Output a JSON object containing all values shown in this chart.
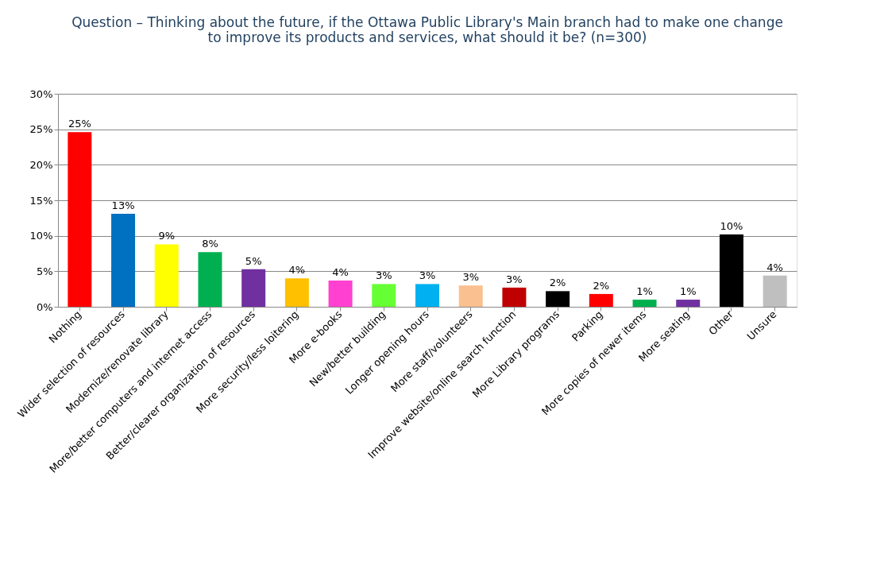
{
  "chart_data": {
    "type": "bar",
    "title": "Question – Thinking about the future, if the Ottawa Public Library's Main branch had to make one change\nto improve its products and services, what should it be? (n=300)",
    "categories": [
      "Nothing",
      "Wider selection of resources",
      "Modernize/renovate library",
      "More/better computers and internet access",
      "Better/clearer organization of resources",
      "More security/less loitering",
      "More e-books",
      "New/better building",
      "Longer opening hours",
      "More staff/volunteers",
      "Improve website/online search function",
      "More Library programs",
      "Parking",
      "More copies of newer items",
      "More seating",
      "Other",
      "Unsure"
    ],
    "values": [
      24.6,
      13.1,
      8.8,
      7.7,
      5.3,
      4.0,
      3.7,
      3.2,
      3.2,
      3.0,
      2.7,
      2.2,
      1.8,
      1.0,
      1.0,
      10.2,
      4.4
    ],
    "value_labels": [
      "25%",
      "13%",
      "9%",
      "8%",
      "5%",
      "4%",
      "4%",
      "3%",
      "3%",
      "3%",
      "3%",
      "2%",
      "2%",
      "1%",
      "1%",
      "10%",
      "4%"
    ],
    "colors": [
      "#ff0000",
      "#0070c0",
      "#ffff00",
      "#00b050",
      "#7030a0",
      "#ffc000",
      "#ff40d0",
      "#66ff33",
      "#00b0f0",
      "#fac090",
      "#c00000",
      "#000000",
      "#ff0000",
      "#00b050",
      "#7030a0",
      "#000000",
      "#bfbfbf"
    ],
    "ylim": [
      0,
      30
    ],
    "yticks": [
      {
        "value": 0,
        "label": "0%"
      },
      {
        "value": 5,
        "label": "5%"
      },
      {
        "value": 10,
        "label": "10%"
      },
      {
        "value": 15,
        "label": "15%"
      },
      {
        "value": 20,
        "label": "20%"
      },
      {
        "value": 25,
        "label": "25%"
      },
      {
        "value": 30,
        "label": "30%"
      }
    ],
    "grid": "y",
    "legend": false
  }
}
